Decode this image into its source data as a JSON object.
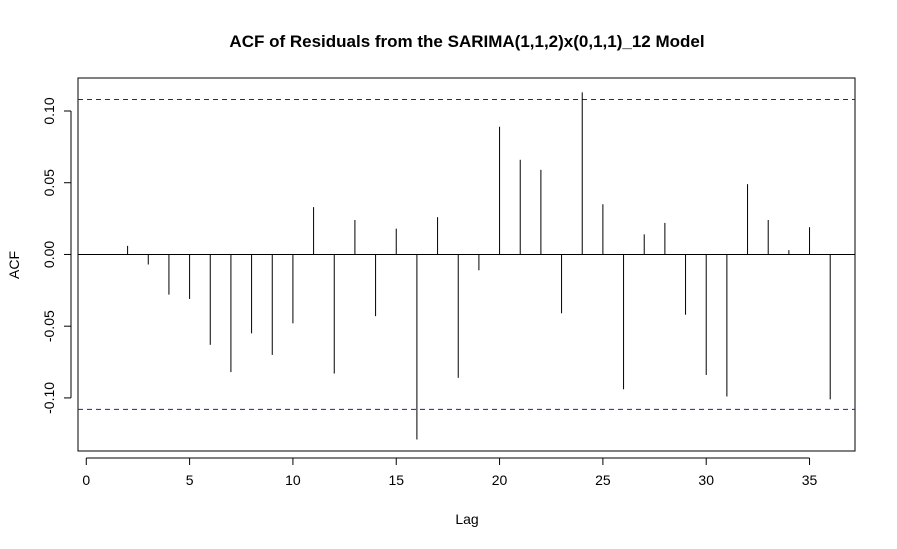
{
  "chart_data": {
    "type": "bar",
    "title": "ACF of Residuals from the SARIMA(1,1,2)x(0,1,1)_12 Model",
    "xlabel": "Lag",
    "ylabel": "ACF",
    "xlim": [
      -0.4,
      37.2
    ],
    "ylim": [
      -0.137,
      0.123
    ],
    "xticks": [
      0,
      5,
      10,
      15,
      20,
      25,
      30,
      35
    ],
    "yticks": [
      0.1,
      0.05,
      0.0,
      -0.05,
      -0.1
    ],
    "ytick_labels": [
      "0.10",
      "0.05",
      "0.00",
      "-0.05",
      "-0.10"
    ],
    "confidence_band": [
      0.108,
      -0.108
    ],
    "confidence_color": "#1a1ad6",
    "lags": [
      2,
      3,
      4,
      5,
      6,
      7,
      8,
      9,
      10,
      11,
      12,
      13,
      14,
      15,
      16,
      17,
      18,
      19,
      20,
      21,
      22,
      23,
      24,
      25,
      26,
      27,
      28,
      29,
      30,
      31,
      32,
      33,
      34,
      35,
      36
    ],
    "values": [
      0.006,
      -0.007,
      -0.028,
      -0.031,
      -0.063,
      -0.082,
      -0.055,
      -0.07,
      -0.048,
      0.033,
      -0.083,
      0.024,
      -0.043,
      0.018,
      -0.129,
      0.026,
      -0.086,
      -0.011,
      0.089,
      0.066,
      0.059,
      -0.041,
      0.113,
      0.035,
      -0.094,
      0.014,
      0.022,
      -0.042,
      -0.084,
      -0.099,
      0.049,
      0.024,
      0.003,
      0.019,
      -0.101
    ],
    "grid": false,
    "legend": "none"
  }
}
